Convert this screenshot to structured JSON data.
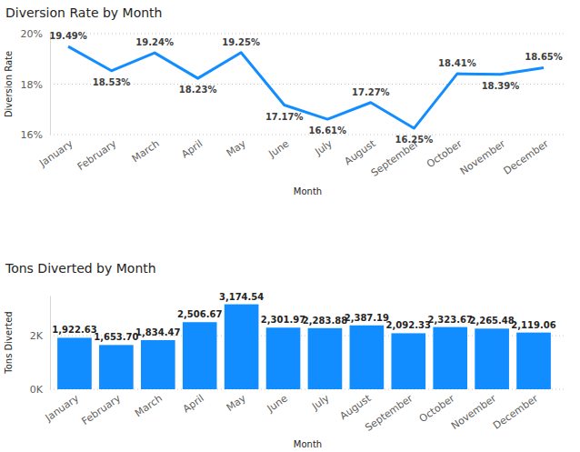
{
  "chart_data": [
    {
      "type": "line",
      "title": "Diversion Rate by Month",
      "x_label": "Month",
      "y_label": "Diversion Rate",
      "categories": [
        "January",
        "February",
        "March",
        "April",
        "May",
        "June",
        "July",
        "August",
        "September",
        "October",
        "November",
        "December"
      ],
      "values": [
        19.49,
        18.53,
        19.24,
        18.23,
        19.25,
        17.17,
        16.61,
        17.27,
        16.25,
        18.41,
        18.39,
        18.65
      ],
      "value_labels": [
        "19.49%",
        "18.53%",
        "19.24%",
        "18.23%",
        "19.25%",
        "17.17%",
        "16.61%",
        "17.27%",
        "16.25%",
        "18.41%",
        "18.39%",
        "18.65%"
      ],
      "color": "#118dff",
      "ylim": [
        16,
        20
      ],
      "yticks": [
        {
          "value": 16,
          "label": "16%"
        },
        {
          "value": 18,
          "label": "18%"
        },
        {
          "value": 20,
          "label": "20%"
        }
      ],
      "grid": true,
      "data_labels": true
    },
    {
      "type": "bar",
      "title": "Tons Diverted by Month",
      "x_label": "Month",
      "y_label": "Tons Diverted",
      "categories": [
        "January",
        "February",
        "March",
        "April",
        "May",
        "June",
        "July",
        "August",
        "September",
        "October",
        "November",
        "December"
      ],
      "values": [
        1922.63,
        1653.7,
        1834.47,
        2506.67,
        3174.54,
        2301.97,
        2283.88,
        2387.19,
        2092.33,
        2323.67,
        2265.48,
        2119.06
      ],
      "value_labels": [
        "1,922.63",
        "1,653.70",
        "1,834.47",
        "2,506.67",
        "3,174.54",
        "2,301.97",
        "2,283.88",
        "2,387.19",
        "2,092.33",
        "2,323.67",
        "2,265.48",
        "2,119.06"
      ],
      "color": "#118dff",
      "ylim": [
        0,
        3500
      ],
      "yticks": [
        {
          "value": 0,
          "label": "0K"
        },
        {
          "value": 2000,
          "label": "2K"
        }
      ],
      "grid": true,
      "data_labels": true
    }
  ]
}
